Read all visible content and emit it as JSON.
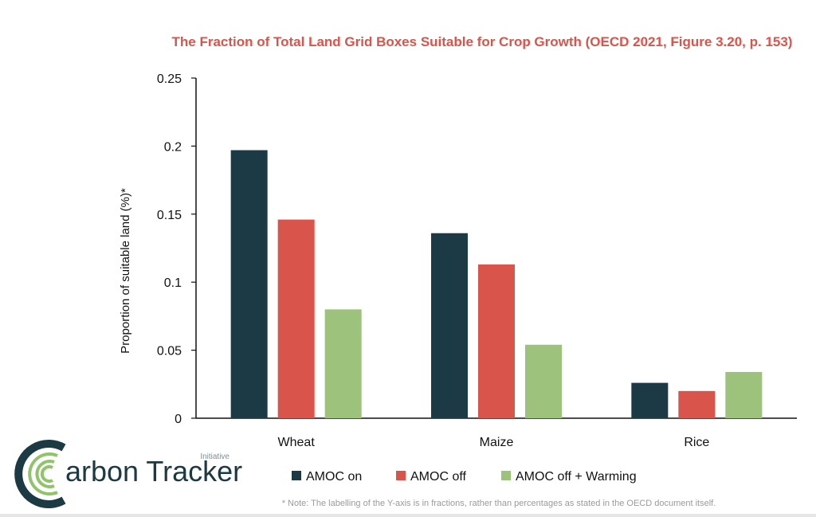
{
  "colors": {
    "amoc_on": "#1b3a46",
    "amoc_off": "#d9544b",
    "amoc_off_warming": "#9cc27c",
    "title": "#d9544b",
    "logo_dark": "#1c3a44",
    "logo_green": "#8fc46b"
  },
  "chart_data": {
    "type": "bar",
    "title": "The Fraction of Total Land Grid Boxes Suitable for Crop Growth (OECD 2021, Figure 3.20, p. 153)",
    "xlabel": "",
    "ylabel": "Proportion of suitable land (%)*",
    "ylim": [
      0,
      0.25
    ],
    "yticks": [
      "0",
      "0.05",
      "0.1",
      "0.15",
      "0.2",
      "0.25"
    ],
    "grid": false,
    "legend_position": "bottom",
    "categories": [
      "Wheat",
      "Maize",
      "Rice"
    ],
    "series": [
      {
        "name": "AMOC on",
        "color_key": "amoc_on",
        "values": [
          0.197,
          0.136,
          0.026
        ]
      },
      {
        "name": "AMOC off",
        "color_key": "amoc_off",
        "values": [
          0.146,
          0.113,
          0.02
        ]
      },
      {
        "name": "AMOC off + Warming",
        "color_key": "amoc_off_warming",
        "values": [
          0.08,
          0.054,
          0.034
        ]
      }
    ]
  },
  "note": "* Note: The labelling of the Y-axis is in fractions, rather than percentages as stated in the OECD document itself.",
  "logo": {
    "text": "arbon Tracker",
    "sub": "Initiative",
    "icon": "carbon-tracker-c-logo"
  }
}
